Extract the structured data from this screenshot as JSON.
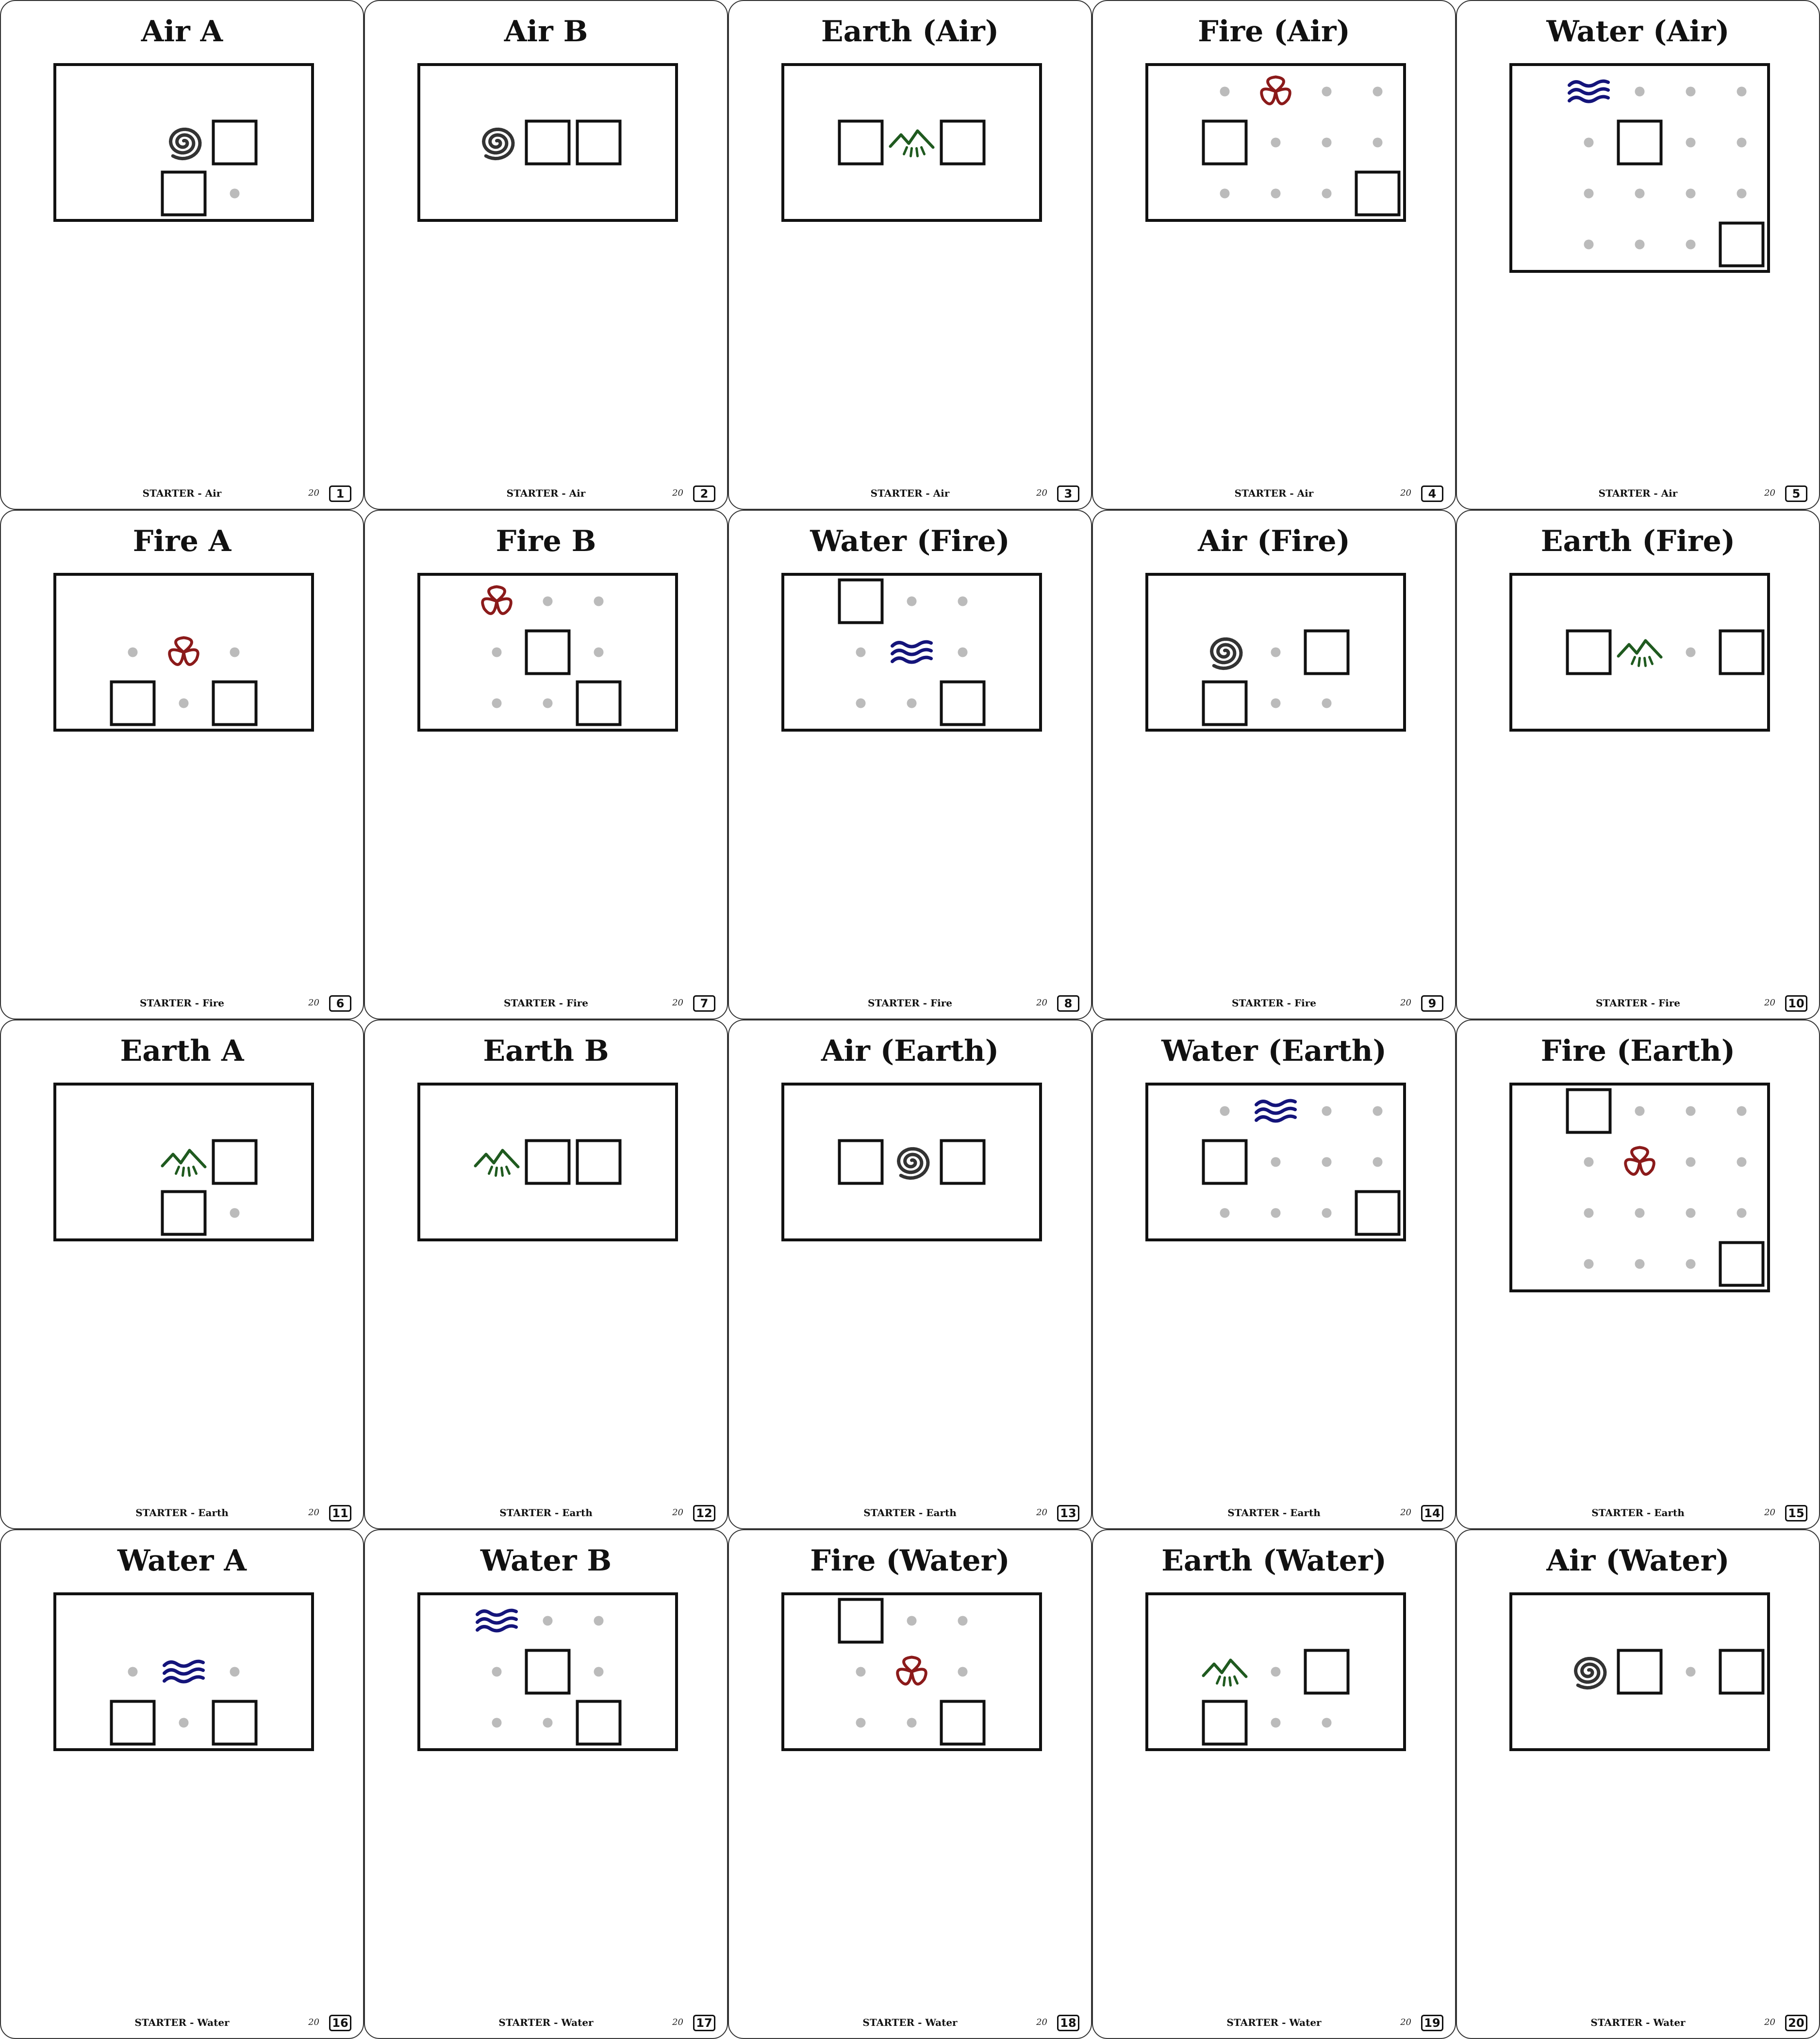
{
  "colors": {
    "air": "#333333",
    "fire": "#8b1a1a",
    "water": "#14147a",
    "earth": "#1f5a1f",
    "dot": "#bbbbbb",
    "outline": "#111111"
  },
  "cards": [
    {
      "title": "Air A",
      "category": "STARTER - Air",
      "total": "20",
      "number": "1",
      "element": "air",
      "cols": 5,
      "rows": 3,
      "cells": [
        {
          "c": 2,
          "r": 1,
          "t": "glyph"
        },
        {
          "c": 3,
          "r": 1,
          "t": "square"
        },
        {
          "c": 2,
          "r": 2,
          "t": "square"
        },
        {
          "c": 3,
          "r": 2,
          "t": "dot"
        }
      ]
    },
    {
      "title": "Air B",
      "category": "STARTER - Air",
      "total": "20",
      "number": "2",
      "element": "air",
      "cols": 5,
      "rows": 3,
      "cells": [
        {
          "c": 1,
          "r": 1,
          "t": "glyph"
        },
        {
          "c": 2,
          "r": 1,
          "t": "square"
        },
        {
          "c": 3,
          "r": 1,
          "t": "square"
        }
      ]
    },
    {
      "title": "Earth (Air)",
      "category": "STARTER - Air",
      "total": "20",
      "number": "3",
      "element": "earth",
      "cols": 5,
      "rows": 3,
      "cells": [
        {
          "c": 1,
          "r": 1,
          "t": "square"
        },
        {
          "c": 2,
          "r": 1,
          "t": "glyph"
        },
        {
          "c": 3,
          "r": 1,
          "t": "square"
        }
      ]
    },
    {
      "title": "Fire (Air)",
      "category": "STARTER - Air",
      "total": "20",
      "number": "4",
      "element": "fire",
      "cols": 5,
      "rows": 3,
      "cells": [
        {
          "c": 1,
          "r": 0,
          "t": "dot"
        },
        {
          "c": 2,
          "r": 0,
          "t": "glyph"
        },
        {
          "c": 3,
          "r": 0,
          "t": "dot"
        },
        {
          "c": 4,
          "r": 0,
          "t": "dot"
        },
        {
          "c": 1,
          "r": 1,
          "t": "square"
        },
        {
          "c": 2,
          "r": 1,
          "t": "dot"
        },
        {
          "c": 3,
          "r": 1,
          "t": "dot"
        },
        {
          "c": 4,
          "r": 1,
          "t": "dot"
        },
        {
          "c": 1,
          "r": 2,
          "t": "dot"
        },
        {
          "c": 2,
          "r": 2,
          "t": "dot"
        },
        {
          "c": 3,
          "r": 2,
          "t": "dot"
        },
        {
          "c": 4,
          "r": 2,
          "t": "square"
        }
      ]
    },
    {
      "title": "Water (Air)",
      "category": "STARTER - Air",
      "total": "20",
      "number": "5",
      "element": "water",
      "cols": 5,
      "rows": 4,
      "cells": [
        {
          "c": 1,
          "r": 0,
          "t": "glyph"
        },
        {
          "c": 2,
          "r": 0,
          "t": "dot"
        },
        {
          "c": 3,
          "r": 0,
          "t": "dot"
        },
        {
          "c": 4,
          "r": 0,
          "t": "dot"
        },
        {
          "c": 1,
          "r": 1,
          "t": "dot"
        },
        {
          "c": 2,
          "r": 1,
          "t": "square"
        },
        {
          "c": 3,
          "r": 1,
          "t": "dot"
        },
        {
          "c": 4,
          "r": 1,
          "t": "dot"
        },
        {
          "c": 1,
          "r": 2,
          "t": "dot"
        },
        {
          "c": 2,
          "r": 2,
          "t": "dot"
        },
        {
          "c": 3,
          "r": 2,
          "t": "dot"
        },
        {
          "c": 4,
          "r": 2,
          "t": "dot"
        },
        {
          "c": 1,
          "r": 3,
          "t": "dot"
        },
        {
          "c": 2,
          "r": 3,
          "t": "dot"
        },
        {
          "c": 3,
          "r": 3,
          "t": "dot"
        },
        {
          "c": 4,
          "r": 3,
          "t": "square"
        }
      ]
    },
    {
      "title": "Fire A",
      "category": "STARTER - Fire",
      "total": "20",
      "number": "6",
      "element": "fire",
      "cols": 5,
      "rows": 3,
      "cells": [
        {
          "c": 1,
          "r": 1,
          "t": "dot"
        },
        {
          "c": 2,
          "r": 1,
          "t": "glyph"
        },
        {
          "c": 3,
          "r": 1,
          "t": "dot"
        },
        {
          "c": 1,
          "r": 2,
          "t": "square"
        },
        {
          "c": 2,
          "r": 2,
          "t": "dot"
        },
        {
          "c": 3,
          "r": 2,
          "t": "square"
        }
      ]
    },
    {
      "title": "Fire B",
      "category": "STARTER - Fire",
      "total": "20",
      "number": "7",
      "element": "fire",
      "cols": 5,
      "rows": 3,
      "cells": [
        {
          "c": 1,
          "r": 0,
          "t": "glyph"
        },
        {
          "c": 2,
          "r": 0,
          "t": "dot"
        },
        {
          "c": 3,
          "r": 0,
          "t": "dot"
        },
        {
          "c": 1,
          "r": 1,
          "t": "dot"
        },
        {
          "c": 2,
          "r": 1,
          "t": "square"
        },
        {
          "c": 3,
          "r": 1,
          "t": "dot"
        },
        {
          "c": 1,
          "r": 2,
          "t": "dot"
        },
        {
          "c": 2,
          "r": 2,
          "t": "dot"
        },
        {
          "c": 3,
          "r": 2,
          "t": "square"
        }
      ]
    },
    {
      "title": "Water (Fire)",
      "category": "STARTER - Fire",
      "total": "20",
      "number": "8",
      "element": "water",
      "cols": 5,
      "rows": 3,
      "cells": [
        {
          "c": 1,
          "r": 0,
          "t": "square"
        },
        {
          "c": 2,
          "r": 0,
          "t": "dot"
        },
        {
          "c": 3,
          "r": 0,
          "t": "dot"
        },
        {
          "c": 1,
          "r": 1,
          "t": "dot"
        },
        {
          "c": 2,
          "r": 1,
          "t": "glyph"
        },
        {
          "c": 3,
          "r": 1,
          "t": "dot"
        },
        {
          "c": 1,
          "r": 2,
          "t": "dot"
        },
        {
          "c": 2,
          "r": 2,
          "t": "dot"
        },
        {
          "c": 3,
          "r": 2,
          "t": "square"
        }
      ]
    },
    {
      "title": "Air (Fire)",
      "category": "STARTER - Fire",
      "total": "20",
      "number": "9",
      "element": "air",
      "cols": 5,
      "rows": 3,
      "cells": [
        {
          "c": 1,
          "r": 1,
          "t": "glyph"
        },
        {
          "c": 2,
          "r": 1,
          "t": "dot"
        },
        {
          "c": 3,
          "r": 1,
          "t": "square"
        },
        {
          "c": 1,
          "r": 2,
          "t": "square"
        },
        {
          "c": 2,
          "r": 2,
          "t": "dot"
        },
        {
          "c": 3,
          "r": 2,
          "t": "dot"
        }
      ]
    },
    {
      "title": "Earth (Fire)",
      "category": "STARTER - Fire",
      "total": "20",
      "number": "10",
      "element": "earth",
      "cols": 5,
      "rows": 3,
      "cells": [
        {
          "c": 1,
          "r": 1,
          "t": "square"
        },
        {
          "c": 2,
          "r": 1,
          "t": "glyph"
        },
        {
          "c": 3,
          "r": 1,
          "t": "dot"
        },
        {
          "c": 4,
          "r": 1,
          "t": "square"
        }
      ]
    },
    {
      "title": "Earth A",
      "category": "STARTER - Earth",
      "total": "20",
      "number": "11",
      "element": "earth",
      "cols": 5,
      "rows": 3,
      "cells": [
        {
          "c": 2,
          "r": 1,
          "t": "glyph"
        },
        {
          "c": 3,
          "r": 1,
          "t": "square"
        },
        {
          "c": 2,
          "r": 2,
          "t": "square"
        },
        {
          "c": 3,
          "r": 2,
          "t": "dot"
        }
      ]
    },
    {
      "title": "Earth B",
      "category": "STARTER - Earth",
      "total": "20",
      "number": "12",
      "element": "earth",
      "cols": 5,
      "rows": 3,
      "cells": [
        {
          "c": 1,
          "r": 1,
          "t": "glyph"
        },
        {
          "c": 2,
          "r": 1,
          "t": "square"
        },
        {
          "c": 3,
          "r": 1,
          "t": "square"
        }
      ]
    },
    {
      "title": "Air (Earth)",
      "category": "STARTER - Earth",
      "total": "20",
      "number": "13",
      "element": "air",
      "cols": 5,
      "rows": 3,
      "cells": [
        {
          "c": 1,
          "r": 1,
          "t": "square"
        },
        {
          "c": 2,
          "r": 1,
          "t": "glyph"
        },
        {
          "c": 3,
          "r": 1,
          "t": "square"
        }
      ]
    },
    {
      "title": "Water (Earth)",
      "category": "STARTER - Earth",
      "total": "20",
      "number": "14",
      "element": "water",
      "cols": 5,
      "rows": 3,
      "cells": [
        {
          "c": 1,
          "r": 0,
          "t": "dot"
        },
        {
          "c": 2,
          "r": 0,
          "t": "glyph"
        },
        {
          "c": 3,
          "r": 0,
          "t": "dot"
        },
        {
          "c": 4,
          "r": 0,
          "t": "dot"
        },
        {
          "c": 1,
          "r": 1,
          "t": "square"
        },
        {
          "c": 2,
          "r": 1,
          "t": "dot"
        },
        {
          "c": 3,
          "r": 1,
          "t": "dot"
        },
        {
          "c": 4,
          "r": 1,
          "t": "dot"
        },
        {
          "c": 1,
          "r": 2,
          "t": "dot"
        },
        {
          "c": 2,
          "r": 2,
          "t": "dot"
        },
        {
          "c": 3,
          "r": 2,
          "t": "dot"
        },
        {
          "c": 4,
          "r": 2,
          "t": "square"
        }
      ]
    },
    {
      "title": "Fire (Earth)",
      "category": "STARTER - Earth",
      "total": "20",
      "number": "15",
      "element": "fire",
      "cols": 5,
      "rows": 4,
      "cells": [
        {
          "c": 1,
          "r": 0,
          "t": "square"
        },
        {
          "c": 2,
          "r": 0,
          "t": "dot"
        },
        {
          "c": 3,
          "r": 0,
          "t": "dot"
        },
        {
          "c": 4,
          "r": 0,
          "t": "dot"
        },
        {
          "c": 1,
          "r": 1,
          "t": "dot"
        },
        {
          "c": 2,
          "r": 1,
          "t": "glyph"
        },
        {
          "c": 3,
          "r": 1,
          "t": "dot"
        },
        {
          "c": 4,
          "r": 1,
          "t": "dot"
        },
        {
          "c": 1,
          "r": 2,
          "t": "dot"
        },
        {
          "c": 2,
          "r": 2,
          "t": "dot"
        },
        {
          "c": 3,
          "r": 2,
          "t": "dot"
        },
        {
          "c": 4,
          "r": 2,
          "t": "dot"
        },
        {
          "c": 1,
          "r": 3,
          "t": "dot"
        },
        {
          "c": 2,
          "r": 3,
          "t": "dot"
        },
        {
          "c": 3,
          "r": 3,
          "t": "dot"
        },
        {
          "c": 4,
          "r": 3,
          "t": "square"
        }
      ]
    },
    {
      "title": "Water A",
      "category": "STARTER - Water",
      "total": "20",
      "number": "16",
      "element": "water",
      "cols": 5,
      "rows": 3,
      "cells": [
        {
          "c": 1,
          "r": 1,
          "t": "dot"
        },
        {
          "c": 2,
          "r": 1,
          "t": "glyph"
        },
        {
          "c": 3,
          "r": 1,
          "t": "dot"
        },
        {
          "c": 1,
          "r": 2,
          "t": "square"
        },
        {
          "c": 2,
          "r": 2,
          "t": "dot"
        },
        {
          "c": 3,
          "r": 2,
          "t": "square"
        }
      ]
    },
    {
      "title": "Water B",
      "category": "STARTER - Water",
      "total": "20",
      "number": "17",
      "element": "water",
      "cols": 5,
      "rows": 3,
      "cells": [
        {
          "c": 1,
          "r": 0,
          "t": "glyph"
        },
        {
          "c": 2,
          "r": 0,
          "t": "dot"
        },
        {
          "c": 3,
          "r": 0,
          "t": "dot"
        },
        {
          "c": 1,
          "r": 1,
          "t": "dot"
        },
        {
          "c": 2,
          "r": 1,
          "t": "square"
        },
        {
          "c": 3,
          "r": 1,
          "t": "dot"
        },
        {
          "c": 1,
          "r": 2,
          "t": "dot"
        },
        {
          "c": 2,
          "r": 2,
          "t": "dot"
        },
        {
          "c": 3,
          "r": 2,
          "t": "square"
        }
      ]
    },
    {
      "title": "Fire (Water)",
      "category": "STARTER - Water",
      "total": "20",
      "number": "18",
      "element": "fire",
      "cols": 5,
      "rows": 3,
      "cells": [
        {
          "c": 1,
          "r": 0,
          "t": "square"
        },
        {
          "c": 2,
          "r": 0,
          "t": "dot"
        },
        {
          "c": 3,
          "r": 0,
          "t": "dot"
        },
        {
          "c": 1,
          "r": 1,
          "t": "dot"
        },
        {
          "c": 2,
          "r": 1,
          "t": "glyph"
        },
        {
          "c": 3,
          "r": 1,
          "t": "dot"
        },
        {
          "c": 1,
          "r": 2,
          "t": "dot"
        },
        {
          "c": 2,
          "r": 2,
          "t": "dot"
        },
        {
          "c": 3,
          "r": 2,
          "t": "square"
        }
      ]
    },
    {
      "title": "Earth (Water)",
      "category": "STARTER - Water",
      "total": "20",
      "number": "19",
      "element": "earth",
      "cols": 5,
      "rows": 3,
      "cells": [
        {
          "c": 1,
          "r": 1,
          "t": "glyph"
        },
        {
          "c": 2,
          "r": 1,
          "t": "dot"
        },
        {
          "c": 3,
          "r": 1,
          "t": "square"
        },
        {
          "c": 1,
          "r": 2,
          "t": "square"
        },
        {
          "c": 2,
          "r": 2,
          "t": "dot"
        },
        {
          "c": 3,
          "r": 2,
          "t": "dot"
        }
      ]
    },
    {
      "title": "Air (Water)",
      "category": "STARTER - Water",
      "total": "20",
      "number": "20",
      "element": "air",
      "cols": 5,
      "rows": 3,
      "cells": [
        {
          "c": 1,
          "r": 1,
          "t": "glyph"
        },
        {
          "c": 2,
          "r": 1,
          "t": "square"
        },
        {
          "c": 3,
          "r": 1,
          "t": "dot"
        },
        {
          "c": 4,
          "r": 1,
          "t": "square"
        }
      ]
    }
  ]
}
